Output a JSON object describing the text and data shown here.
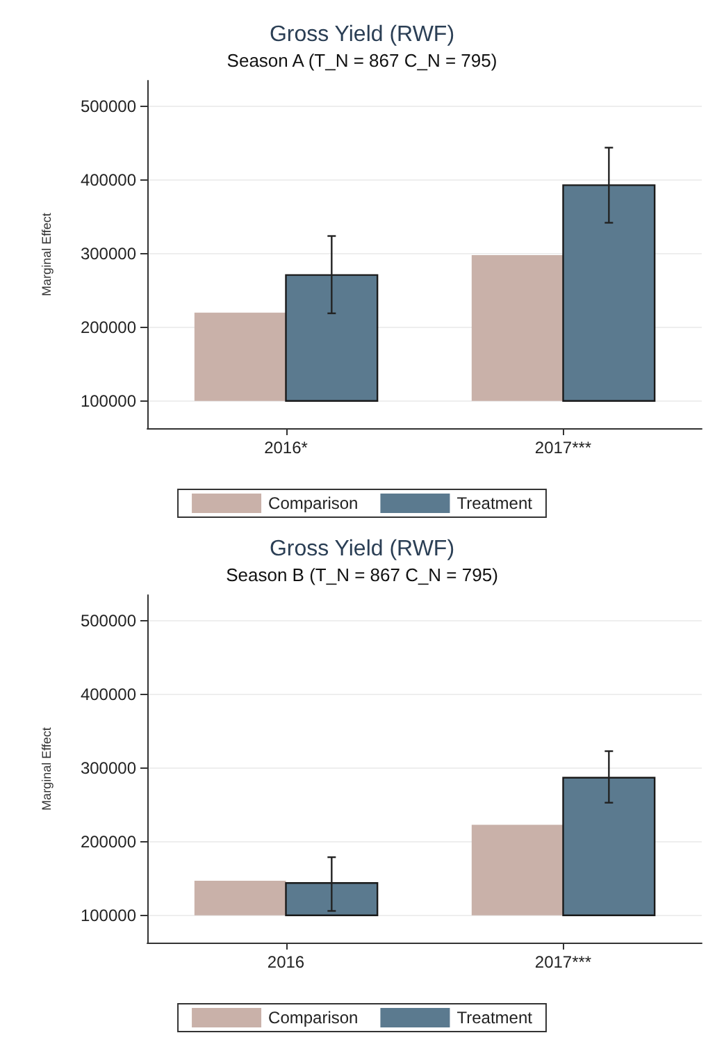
{
  "chart_data": [
    {
      "type": "bar",
      "title": "Gross Yield (RWF)",
      "subtitle": "Season A (T_N = 867 C_N = 795)",
      "ylabel": "Marginal Effect",
      "categories": [
        "2016*",
        "2017***"
      ],
      "ylim": [
        63000,
        535000
      ],
      "yticks": [
        100000,
        200000,
        300000,
        400000,
        500000
      ],
      "grid": "y",
      "legend": "bottom",
      "series": [
        {
          "name": "Comparison",
          "color": "#c9b1a9",
          "base": [
            100000,
            100000
          ],
          "values": [
            120000,
            198000
          ]
        },
        {
          "name": "Treatment",
          "color": "#5b7a8f",
          "base": [
            100000,
            100000
          ],
          "values": [
            171000,
            293000
          ],
          "errors": [
            [
              219000,
              324000
            ],
            [
              342000,
              444000
            ]
          ]
        }
      ]
    },
    {
      "type": "bar",
      "title": "Gross Yield (RWF)",
      "subtitle": "Season B (T_N = 867 C_N = 795)",
      "ylabel": "Marginal Effect",
      "categories": [
        "2016",
        "2017***"
      ],
      "ylim": [
        63000,
        535000
      ],
      "yticks": [
        100000,
        200000,
        300000,
        400000,
        500000
      ],
      "grid": "y",
      "legend": "bottom",
      "series": [
        {
          "name": "Comparison",
          "color": "#c9b1a9",
          "base": [
            100000,
            100000
          ],
          "values": [
            47000,
            123000
          ]
        },
        {
          "name": "Treatment",
          "color": "#5b7a8f",
          "base": [
            100000,
            100000
          ],
          "values": [
            44000,
            187000
          ],
          "errors": [
            [
              106000,
              179000
            ],
            [
              253000,
              323000
            ]
          ]
        }
      ]
    }
  ]
}
